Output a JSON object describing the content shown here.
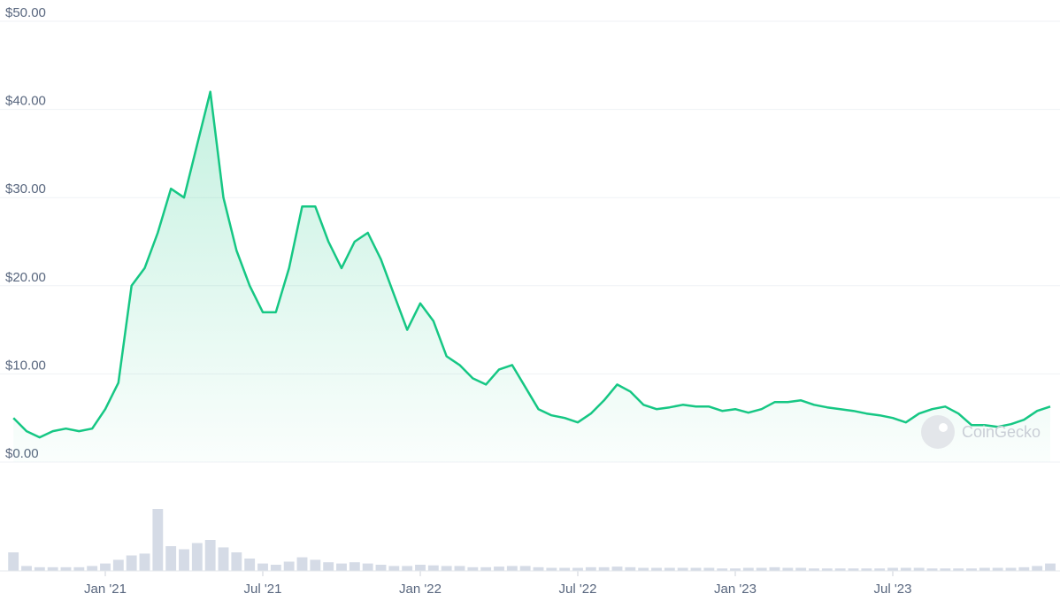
{
  "chart_data": [
    {
      "type": "line",
      "categories": [
        "",
        "",
        "",
        "",
        "",
        "",
        "",
        "Jan '21",
        "",
        "",
        "",
        "",
        "",
        "",
        "",
        "",
        "",
        "",
        "",
        "Jul '21",
        "",
        "",
        "",
        "",
        "",
        "",
        "",
        "",
        "",
        "",
        "",
        "Jan '22",
        "",
        "",
        "",
        "",
        "",
        "",
        "",
        "",
        "",
        "",
        "",
        "Jul '22",
        "",
        "",
        "",
        "",
        "",
        "",
        "",
        "",
        "",
        "",
        "",
        "Jan '23",
        "",
        "",
        "",
        "",
        "",
        "",
        "",
        "",
        "",
        "",
        "",
        "Jul '23",
        "",
        "",
        "",
        "",
        "",
        "",
        "",
        "",
        "",
        "",
        "",
        ""
      ],
      "series": [
        {
          "color": "#16c784",
          "values": [
            5,
            3.5,
            2.8,
            3.5,
            3.8,
            3.5,
            3.8,
            6,
            9,
            20,
            22,
            26,
            31,
            30,
            36,
            42,
            30,
            24,
            20,
            17,
            17,
            22,
            29,
            29,
            25,
            22,
            25,
            26,
            23,
            19,
            15,
            18,
            16,
            12,
            11,
            9.5,
            8.8,
            10.5,
            11,
            8.5,
            6,
            5.3,
            5,
            4.5,
            5.5,
            7,
            8.8,
            8,
            6.5,
            6,
            6.2,
            6.5,
            6.3,
            6.3,
            5.8,
            6,
            5.6,
            6,
            6.8,
            6.8,
            7,
            6.5,
            6.2,
            6,
            5.8,
            5.5,
            5.3,
            5,
            4.5,
            5.5,
            6,
            6.3,
            5.5,
            4.2,
            4.2,
            4,
            4.3,
            4.8,
            5.8,
            6.3
          ]
        }
      ],
      "ylim": [
        0,
        50
      ],
      "yticks": [
        {
          "value": 0,
          "label": "$0.00"
        },
        {
          "value": 10,
          "label": "$10.00"
        },
        {
          "value": 20,
          "label": "$20.00"
        },
        {
          "value": 30,
          "label": "$30.00"
        },
        {
          "value": 40,
          "label": "$40.00"
        },
        {
          "value": 50,
          "label": "$50.00"
        }
      ],
      "grid": true,
      "watermark": "CoinGecko"
    },
    {
      "type": "bar",
      "color": "#d5dbe6",
      "values": [
        30,
        8,
        6,
        6,
        6,
        6,
        8,
        12,
        18,
        25,
        28,
        100,
        40,
        35,
        45,
        50,
        38,
        30,
        20,
        12,
        10,
        15,
        22,
        18,
        14,
        12,
        14,
        12,
        10,
        8,
        8,
        10,
        9,
        8,
        8,
        6,
        6,
        7,
        8,
        8,
        6,
        5,
        5,
        5,
        6,
        6,
        7,
        6,
        5,
        5,
        5,
        5,
        5,
        5,
        4,
        4,
        5,
        5,
        6,
        5,
        5,
        4,
        4,
        4,
        4,
        4,
        4,
        5,
        5,
        5,
        4,
        4,
        4,
        4,
        5,
        5,
        5,
        6,
        8,
        12
      ],
      "ylim": [
        0,
        100
      ]
    }
  ]
}
